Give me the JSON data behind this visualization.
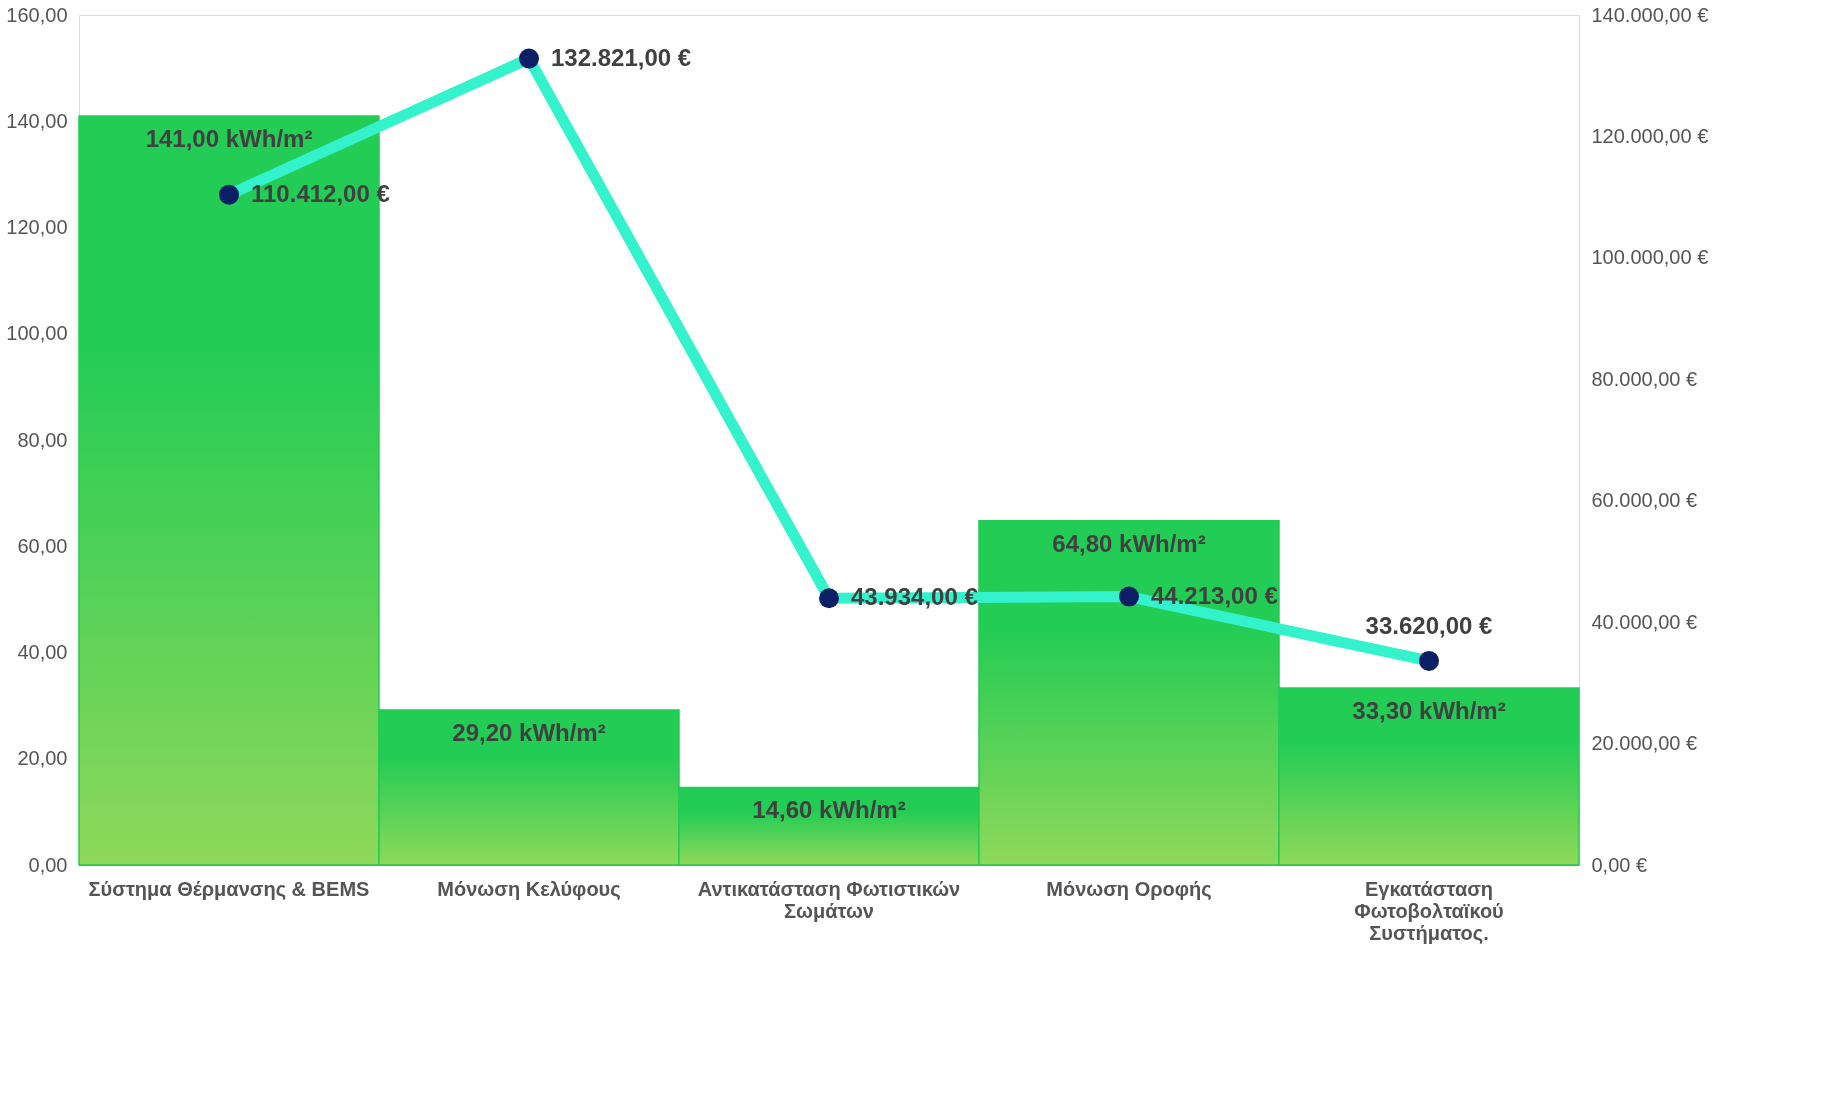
{
  "chart_data": {
    "type": "bar",
    "categories": [
      "Σύστημα Θέρμανσης & BEMS",
      "Μόνωση Κελύφους",
      "Αντικατάσταση Φωτιστικών Σωμάτων",
      "Μόνωση Οροφής",
      "Εγκατάσταση Φωτοβολταϊκού Συστήματος."
    ],
    "series": [
      {
        "color": "#22cc55",
        "values": [
          141.0,
          29.2,
          14.6,
          64.8,
          33.3
        ],
        "value_labels": [
          "141,00 kWh/m²",
          "29,20 kWh/m²",
          "14,60 kWh/m²",
          "64,80 kWh/m²",
          "33,30 kWh/m²"
        ]
      },
      {
        "type": "line",
        "axis": "y2",
        "color": "#33f2cc",
        "values": [
          110412,
          132821,
          43934,
          44213,
          33620
        ],
        "value_labels": [
          "110.412,00 €",
          "132.821,00 €",
          "43.934,00 €",
          "44.213,00 €",
          "33.620,00 €"
        ]
      }
    ],
    "ylim": [
      0,
      160
    ],
    "yticks": [
      {
        "value": 0,
        "label": "0,00"
      },
      {
        "value": 20,
        "label": "20,00"
      },
      {
        "value": 40,
        "label": "40,00"
      },
      {
        "value": 60,
        "label": "60,00"
      },
      {
        "value": 80,
        "label": "80,00"
      },
      {
        "value": 100,
        "label": "100,00"
      },
      {
        "value": 120,
        "label": "120,00"
      },
      {
        "value": 140,
        "label": "140,00"
      },
      {
        "value": 160,
        "label": "160,00"
      }
    ],
    "y2lim": [
      0,
      140000
    ],
    "y2ticks": [
      {
        "value": 0,
        "label": "0,00 €"
      },
      {
        "value": 20000,
        "label": "20.000,00 €"
      },
      {
        "value": 40000,
        "label": "40.000,00 €"
      },
      {
        "value": 60000,
        "label": "60.000,00 €"
      },
      {
        "value": 80000,
        "label": "80.000,00 €"
      },
      {
        "value": 100000,
        "label": "100.000,00 €"
      },
      {
        "value": 120000,
        "label": "120.000,00 €"
      },
      {
        "value": 140000,
        "label": "140.000,00 €"
      }
    ],
    "marker": "circle",
    "grid": false
  }
}
